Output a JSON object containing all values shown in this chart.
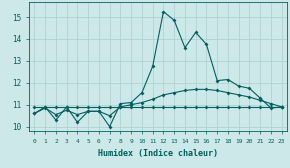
{
  "xlabel": "Humidex (Indice chaleur)",
  "background_color": "#cce8e8",
  "line_color": "#006060",
  "grid_color": "#aacfcf",
  "x_values": [
    0,
    1,
    2,
    3,
    4,
    5,
    6,
    7,
    8,
    9,
    10,
    11,
    12,
    13,
    14,
    15,
    16,
    17,
    18,
    19,
    20,
    21,
    22,
    23
  ],
  "y_main": [
    10.6,
    10.9,
    10.3,
    10.9,
    10.2,
    10.7,
    10.7,
    10.0,
    11.05,
    11.1,
    11.55,
    12.75,
    15.25,
    14.85,
    13.6,
    14.3,
    13.75,
    12.1,
    12.15,
    11.85,
    11.75,
    11.3,
    10.85,
    10.9
  ],
  "y_avg": [
    10.6,
    10.85,
    10.55,
    10.75,
    10.55,
    10.7,
    10.7,
    10.5,
    10.9,
    11.0,
    11.1,
    11.25,
    11.45,
    11.55,
    11.65,
    11.7,
    11.7,
    11.65,
    11.55,
    11.45,
    11.35,
    11.2,
    11.05,
    10.9
  ],
  "y_flat": [
    10.9,
    10.9,
    10.9,
    10.9,
    10.9,
    10.9,
    10.9,
    10.9,
    10.9,
    10.9,
    10.9,
    10.9,
    10.9,
    10.9,
    10.9,
    10.9,
    10.9,
    10.9,
    10.9,
    10.9,
    10.9,
    10.9,
    10.9,
    10.9
  ],
  "ylim": [
    9.8,
    15.7
  ],
  "xlim": [
    -0.5,
    23.5
  ],
  "yticks": [
    10,
    11,
    12,
    13,
    14,
    15
  ],
  "xticks": [
    0,
    1,
    2,
    3,
    4,
    5,
    6,
    7,
    8,
    9,
    10,
    11,
    12,
    13,
    14,
    15,
    16,
    17,
    18,
    19,
    20,
    21,
    22,
    23
  ],
  "marker": "D",
  "marker_size": 2.0,
  "line_width": 0.8
}
